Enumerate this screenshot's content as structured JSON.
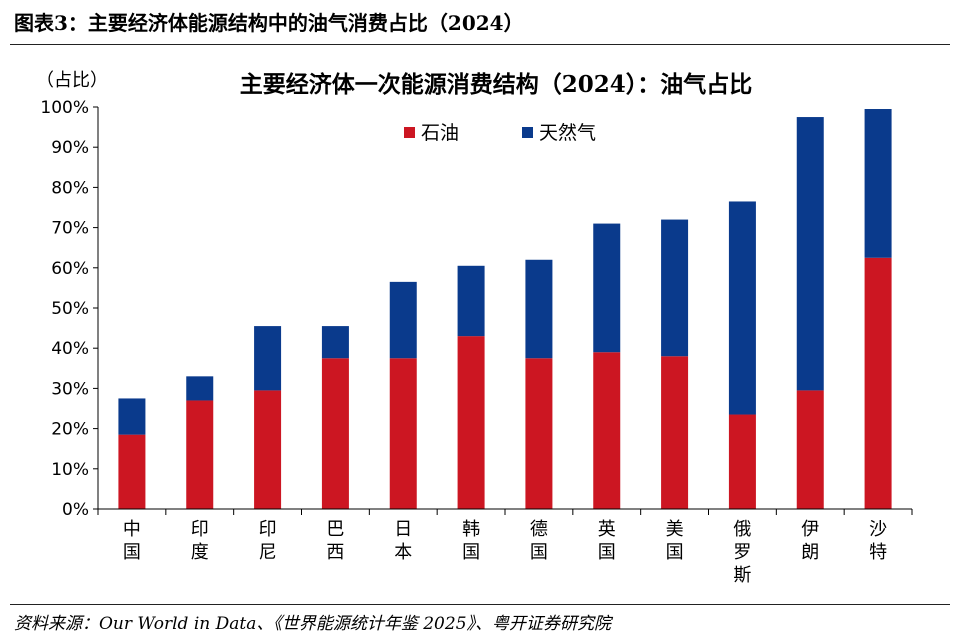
{
  "header": {
    "figure_title": "图表3：主要经济体能源结构中的油气消费占比（2024）"
  },
  "source": {
    "text": "资料来源：Our World in Data、《世界能源统计年鉴 2025》、粤开证券研究院"
  },
  "chart_data": {
    "type": "bar",
    "stacked": true,
    "title": "主要经济体一次能源消费结构（2024）：油气占比",
    "unit_label": "（占比）",
    "categories": [
      "中国",
      "印度",
      "印尼",
      "巴西",
      "日本",
      "韩国",
      "德国",
      "英国",
      "美国",
      "俄罗斯",
      "伊朗",
      "沙特"
    ],
    "series": [
      {
        "name": "石油",
        "color": "#cc1622",
        "values": [
          18.5,
          27,
          29.5,
          37.5,
          37.5,
          43,
          37.5,
          39,
          38,
          23.5,
          29.5,
          62.5
        ]
      },
      {
        "name": "天然气",
        "color": "#0a3a8c",
        "values": [
          9,
          6,
          16,
          8,
          19,
          17.5,
          24.5,
          32,
          34,
          53,
          68,
          37
        ]
      }
    ],
    "y_ticks": [
      "0%",
      "10%",
      "20%",
      "30%",
      "40%",
      "50%",
      "60%",
      "70%",
      "80%",
      "90%",
      "100%"
    ],
    "ylim": [
      0,
      100
    ],
    "grid": false,
    "legend_position": "top-center"
  }
}
